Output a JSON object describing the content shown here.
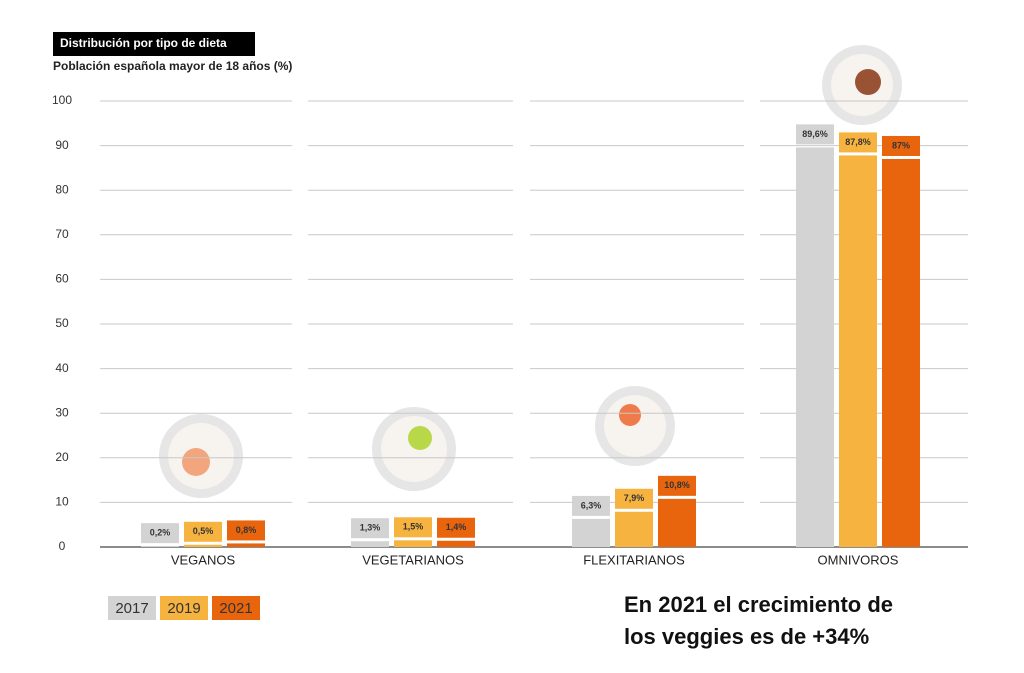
{
  "chart_data": {
    "type": "bar",
    "title": "Distribución por tipo de dieta",
    "subtitle": "Población española mayor de 18 años (%)",
    "categories": [
      "VEGANOS",
      "VEGETARIANOS",
      "FLEXITARIANOS",
      "OMNIVOROS"
    ],
    "series": [
      {
        "name": "2017",
        "color": "#d3d3d3",
        "values": [
          0.2,
          1.3,
          6.3,
          89.6
        ],
        "value_labels": [
          "0,2%",
          "1,3%",
          "6,3%",
          "89,6%"
        ]
      },
      {
        "name": "2019",
        "color": "#f6b33f",
        "values": [
          0.5,
          1.5,
          7.9,
          87.8
        ],
        "value_labels": [
          "0,5%",
          "1,5%",
          "7,9%",
          "87,8%"
        ]
      },
      {
        "name": "2021",
        "color": "#e8650e",
        "values": [
          0.8,
          1.4,
          10.8,
          87
        ],
        "value_labels": [
          "0,8%",
          "1,4%",
          "10,8%",
          "87%"
        ]
      }
    ],
    "ylim": [
      0,
      100
    ],
    "yticks": [
      0,
      10,
      20,
      30,
      40,
      50,
      60,
      70,
      80,
      90,
      100
    ],
    "grid": true,
    "annotation": [
      "En 2021 el crecimiento de",
      "los veggies es de +34%"
    ]
  }
}
